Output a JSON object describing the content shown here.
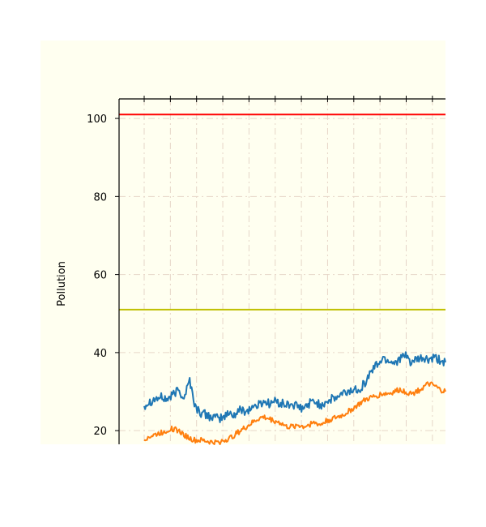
{
  "chart_data": {
    "type": "line",
    "title": "",
    "xlabel": "",
    "ylabel": "Pollution",
    "ylim": [
      16.5,
      105
    ],
    "yticks": [
      20,
      40,
      60,
      80,
      100
    ],
    "ytick_labels": [
      "20",
      "40",
      "60",
      "80",
      "100"
    ],
    "grid": true,
    "reference_lines": [
      {
        "y": 101,
        "color": "#ff0000"
      },
      {
        "y": 51,
        "color": "#bfbf00"
      }
    ],
    "series": [
      {
        "color": "#1f77b4",
        "values": [
          26.5,
          27.5,
          28.2,
          28.5,
          28.0,
          29.0,
          30.5,
          28.5,
          33.0,
          26.0,
          24.5,
          24.0,
          23.5,
          23.0,
          23.5,
          24.5,
          24.0,
          25.5,
          25.0,
          26.0,
          26.5,
          27.5,
          27.0,
          27.5,
          27.0,
          26.5,
          26.8,
          26.0,
          25.5,
          27.0,
          27.5,
          26.5,
          27.5,
          28.0,
          28.5,
          29.5,
          30.0,
          30.5,
          31.0,
          32.5,
          35.5,
          37.0,
          38.5,
          38.0,
          37.5,
          38.5,
          39.0,
          37.5,
          38.0,
          38.5,
          38.0,
          38.5,
          38.0,
          37.5
        ]
      },
      {
        "color": "#ff7f0e",
        "values": [
          18.0,
          18.5,
          19.0,
          19.5,
          20.0,
          20.5,
          20.0,
          19.0,
          18.0,
          17.5,
          17.5,
          17.3,
          17.0,
          17.0,
          17.5,
          18.0,
          19.0,
          20.0,
          21.0,
          22.0,
          23.0,
          23.5,
          23.0,
          22.5,
          22.0,
          21.0,
          21.0,
          21.5,
          21.0,
          21.5,
          22.0,
          21.5,
          22.5,
          23.0,
          23.5,
          24.0,
          25.0,
          26.0,
          27.0,
          28.0,
          28.5,
          29.0,
          29.5,
          29.5,
          30.0,
          30.5,
          30.0,
          29.5,
          30.0,
          31.0,
          32.0,
          31.5,
          30.5,
          30.0
        ]
      }
    ]
  },
  "colors": {
    "page_background": "#ffffff",
    "plot_background": "#fffff0",
    "grid": "#e6d6c8",
    "axis": "#000000"
  }
}
